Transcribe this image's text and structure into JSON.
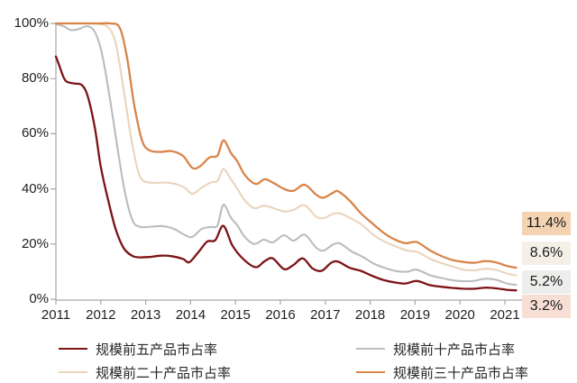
{
  "chart_data": {
    "type": "line",
    "title": "",
    "unit": "%",
    "grid": false,
    "x_axis": {
      "labels": [
        "2011",
        "2012",
        "2013",
        "2014",
        "2015",
        "2016",
        "2017",
        "2018",
        "2019",
        "2020",
        "2021"
      ],
      "tick_years": [
        2011,
        2012,
        2013,
        2014,
        2015,
        2016,
        2017,
        2018,
        2019,
        2020,
        2021,
        2022
      ],
      "range": [
        2011,
        2022.37
      ]
    },
    "y_axis": {
      "labels": [
        "0%",
        "20%",
        "40%",
        "60%",
        "80%",
        "100%"
      ],
      "tick_values": [
        0,
        20,
        40,
        60,
        80,
        100
      ],
      "range": [
        0,
        100
      ]
    },
    "series": [
      {
        "name": "规模前五产品市占率",
        "color": "#7d1315",
        "line_width": 2.3,
        "end_value": "3.2%",
        "points": [
          [
            2011.0,
            88
          ],
          [
            2011.08,
            84.5
          ],
          [
            2011.17,
            80.5
          ],
          [
            2011.25,
            78.8
          ],
          [
            2011.42,
            78.2
          ],
          [
            2011.58,
            77.6
          ],
          [
            2011.71,
            73.5
          ],
          [
            2011.87,
            62
          ],
          [
            2012.0,
            48
          ],
          [
            2012.17,
            35.5
          ],
          [
            2012.33,
            25.5
          ],
          [
            2012.5,
            18.8
          ],
          [
            2012.67,
            16
          ],
          [
            2012.83,
            15.2
          ],
          [
            2013.08,
            15.3
          ],
          [
            2013.33,
            15.8
          ],
          [
            2013.58,
            15.6
          ],
          [
            2013.83,
            14.6
          ],
          [
            2013.97,
            13.4
          ],
          [
            2014.17,
            17
          ],
          [
            2014.37,
            20.9
          ],
          [
            2014.55,
            21.4
          ],
          [
            2014.73,
            26.6
          ],
          [
            2014.93,
            19.5
          ],
          [
            2015.17,
            14.6
          ],
          [
            2015.45,
            11.6
          ],
          [
            2015.65,
            13.8
          ],
          [
            2015.83,
            14.8
          ],
          [
            2016.08,
            10.9
          ],
          [
            2016.29,
            12.4
          ],
          [
            2016.5,
            14.8
          ],
          [
            2016.71,
            11.2
          ],
          [
            2016.92,
            10.3
          ],
          [
            2017.13,
            13.2
          ],
          [
            2017.29,
            13.6
          ],
          [
            2017.54,
            11.4
          ],
          [
            2017.79,
            10.3
          ],
          [
            2018.04,
            8.5
          ],
          [
            2018.29,
            7.0
          ],
          [
            2018.54,
            6.1
          ],
          [
            2018.79,
            5.7
          ],
          [
            2019.04,
            6.6
          ],
          [
            2019.33,
            5.1
          ],
          [
            2019.58,
            4.5
          ],
          [
            2019.83,
            4.1
          ],
          [
            2020.08,
            3.8
          ],
          [
            2020.33,
            3.8
          ],
          [
            2020.58,
            4.2
          ],
          [
            2020.83,
            3.9
          ],
          [
            2021.04,
            3.4
          ],
          [
            2021.25,
            3.2
          ]
        ]
      },
      {
        "name": "规模前十产品市占率",
        "color": "#bbbcbe",
        "line_width": 2.1,
        "end_value": "5.2%",
        "points": [
          [
            2011.0,
            99.8
          ],
          [
            2011.17,
            99
          ],
          [
            2011.33,
            97.6
          ],
          [
            2011.5,
            97.9
          ],
          [
            2011.71,
            99
          ],
          [
            2011.88,
            96.5
          ],
          [
            2012.04,
            88
          ],
          [
            2012.21,
            72
          ],
          [
            2012.38,
            54
          ],
          [
            2012.54,
            38.5
          ],
          [
            2012.71,
            28.5
          ],
          [
            2012.88,
            26.2
          ],
          [
            2013.13,
            26.3
          ],
          [
            2013.38,
            26.5
          ],
          [
            2013.63,
            25.5
          ],
          [
            2013.88,
            23.2
          ],
          [
            2014.04,
            22.6
          ],
          [
            2014.25,
            25.5
          ],
          [
            2014.46,
            26.2
          ],
          [
            2014.6,
            26.8
          ],
          [
            2014.73,
            34.2
          ],
          [
            2014.9,
            29.5
          ],
          [
            2015.04,
            26.8
          ],
          [
            2015.21,
            22.5
          ],
          [
            2015.42,
            20
          ],
          [
            2015.63,
            21.6
          ],
          [
            2015.83,
            20.6
          ],
          [
            2016.08,
            23.2
          ],
          [
            2016.29,
            21.2
          ],
          [
            2016.54,
            23.4
          ],
          [
            2016.79,
            18.8
          ],
          [
            2016.96,
            17.6
          ],
          [
            2017.17,
            19.8
          ],
          [
            2017.33,
            20.2
          ],
          [
            2017.58,
            17.4
          ],
          [
            2017.83,
            15.4
          ],
          [
            2018.08,
            12.9
          ],
          [
            2018.33,
            11.3
          ],
          [
            2018.58,
            10.2
          ],
          [
            2018.83,
            10
          ],
          [
            2019.04,
            10.7
          ],
          [
            2019.33,
            8.7
          ],
          [
            2019.58,
            7.7
          ],
          [
            2019.83,
            6.9
          ],
          [
            2020.08,
            6.5
          ],
          [
            2020.33,
            6.7
          ],
          [
            2020.54,
            7.4
          ],
          [
            2020.79,
            7.1
          ],
          [
            2021.04,
            5.7
          ],
          [
            2021.25,
            5.2
          ]
        ]
      },
      {
        "name": "规模前二十产品市占率",
        "color": "#e9d5bb",
        "line_width": 2.1,
        "end_value": "8.6%",
        "points": [
          [
            2011.0,
            100
          ],
          [
            2011.33,
            100
          ],
          [
            2011.67,
            100
          ],
          [
            2011.96,
            99.8
          ],
          [
            2012.17,
            98.5
          ],
          [
            2012.33,
            93
          ],
          [
            2012.5,
            77
          ],
          [
            2012.67,
            59
          ],
          [
            2012.83,
            46.5
          ],
          [
            2012.96,
            42.8
          ],
          [
            2013.21,
            42.2
          ],
          [
            2013.46,
            42.3
          ],
          [
            2013.71,
            41.6
          ],
          [
            2013.88,
            40.3
          ],
          [
            2014.04,
            38.2
          ],
          [
            2014.25,
            40.5
          ],
          [
            2014.46,
            42.4
          ],
          [
            2014.6,
            42.9
          ],
          [
            2014.73,
            47.2
          ],
          [
            2014.9,
            43.5
          ],
          [
            2015.04,
            40
          ],
          [
            2015.21,
            35.8
          ],
          [
            2015.42,
            33
          ],
          [
            2015.63,
            33.9
          ],
          [
            2015.83,
            33.1
          ],
          [
            2016.08,
            31.8
          ],
          [
            2016.29,
            32.4
          ],
          [
            2016.54,
            34.1
          ],
          [
            2016.79,
            30
          ],
          [
            2016.96,
            29.4
          ],
          [
            2017.17,
            30.9
          ],
          [
            2017.33,
            31.1
          ],
          [
            2017.58,
            29.2
          ],
          [
            2017.83,
            26.8
          ],
          [
            2018.08,
            23.2
          ],
          [
            2018.33,
            20.8
          ],
          [
            2018.58,
            19.1
          ],
          [
            2018.83,
            17.6
          ],
          [
            2019.04,
            17.2
          ],
          [
            2019.33,
            14.7
          ],
          [
            2019.58,
            13.1
          ],
          [
            2019.83,
            11.9
          ],
          [
            2020.08,
            10.7
          ],
          [
            2020.33,
            10.5
          ],
          [
            2020.54,
            11
          ],
          [
            2020.79,
            10.7
          ],
          [
            2021.04,
            9.3
          ],
          [
            2021.25,
            8.6
          ]
        ]
      },
      {
        "name": "规模前三十产品市占率",
        "color": "#d8854a",
        "line_width": 2.3,
        "end_value": "11.4%",
        "points": [
          [
            2011.0,
            100
          ],
          [
            2011.33,
            100
          ],
          [
            2011.67,
            100
          ],
          [
            2012.0,
            100
          ],
          [
            2012.21,
            100.2
          ],
          [
            2012.42,
            98.5
          ],
          [
            2012.58,
            88
          ],
          [
            2012.75,
            70
          ],
          [
            2012.92,
            57.5
          ],
          [
            2013.08,
            54
          ],
          [
            2013.33,
            53.4
          ],
          [
            2013.58,
            53.7
          ],
          [
            2013.83,
            52
          ],
          [
            2014.04,
            47.6
          ],
          [
            2014.21,
            48.2
          ],
          [
            2014.42,
            51.4
          ],
          [
            2014.6,
            52.1
          ],
          [
            2014.73,
            57.6
          ],
          [
            2014.9,
            53
          ],
          [
            2015.04,
            50
          ],
          [
            2015.21,
            45
          ],
          [
            2015.45,
            41.8
          ],
          [
            2015.65,
            43.5
          ],
          [
            2015.83,
            42.3
          ],
          [
            2016.08,
            40
          ],
          [
            2016.29,
            39.3
          ],
          [
            2016.54,
            41.5
          ],
          [
            2016.79,
            38
          ],
          [
            2016.96,
            36.8
          ],
          [
            2017.17,
            38.6
          ],
          [
            2017.29,
            39.1
          ],
          [
            2017.54,
            35.8
          ],
          [
            2017.79,
            31.2
          ],
          [
            2018.04,
            27.6
          ],
          [
            2018.29,
            24.2
          ],
          [
            2018.54,
            21.7
          ],
          [
            2018.79,
            20.3
          ],
          [
            2019.04,
            20.7
          ],
          [
            2019.33,
            17.7
          ],
          [
            2019.58,
            15.7
          ],
          [
            2019.83,
            14.2
          ],
          [
            2020.08,
            13.5
          ],
          [
            2020.33,
            13.2
          ],
          [
            2020.54,
            13.8
          ],
          [
            2020.79,
            13.4
          ],
          [
            2021.04,
            12.1
          ],
          [
            2021.25,
            11.4
          ]
        ]
      }
    ],
    "end_labels": [
      {
        "text": "11.4%",
        "bg": "#f3d3b1"
      },
      {
        "text": "8.6%",
        "bg": "#f4f0e8"
      },
      {
        "text": "5.2%",
        "bg": "#ededeb"
      },
      {
        "text": "3.2%",
        "bg": "#f7dfd6"
      }
    ],
    "legend_position": "bottom",
    "axis_color": "#a7a7a7"
  }
}
